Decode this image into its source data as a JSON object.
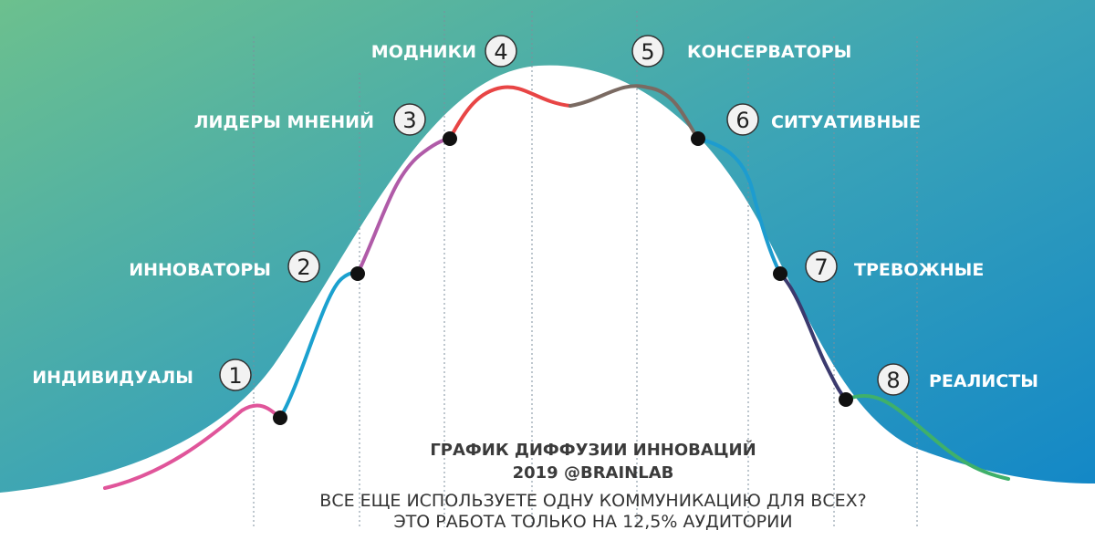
{
  "diagram": {
    "segments": [
      {
        "number": "1",
        "label": "ИНДИВИДУАЛЫ",
        "color": "#e0559a"
      },
      {
        "number": "2",
        "label": "ИННОВАТОРЫ",
        "color": "#1ba1cf"
      },
      {
        "number": "3",
        "label": "ЛИДЕРЫ МНЕНИЙ",
        "color": "#b05ba8"
      },
      {
        "number": "4",
        "label": "МОДНИКИ",
        "color": "#e84545"
      },
      {
        "number": "5",
        "label": "КОНСЕРВАТОРЫ",
        "color": "#7a6a62"
      },
      {
        "number": "6",
        "label": "СИТУАТИВНЫЕ",
        "color": "#1d9ccf"
      },
      {
        "number": "7",
        "label": "ТРЕВОЖНЫЕ",
        "color": "#3b3a6e"
      },
      {
        "number": "8",
        "label": "РЕАЛИСТЫ",
        "color": "#3fb06a"
      }
    ],
    "gradient_colors": [
      "#6cc08e",
      "#3aa3b7",
      "#0e84c9"
    ]
  },
  "caption": {
    "title": "ГРАФИК ДИФФУЗИИ ИННОВАЦИЙ",
    "year_brand": "2019 @BRAINLAB",
    "line1": "ВСЕ ЕЩЕ ИСПОЛЬЗУЕТЕ ОДНУ КОММУНИКАЦИЮ ДЛЯ ВСЕХ?",
    "line2": "ЭТО РАБОТА ТОЛЬКО НА 12,5% АУДИТОРИИ"
  }
}
